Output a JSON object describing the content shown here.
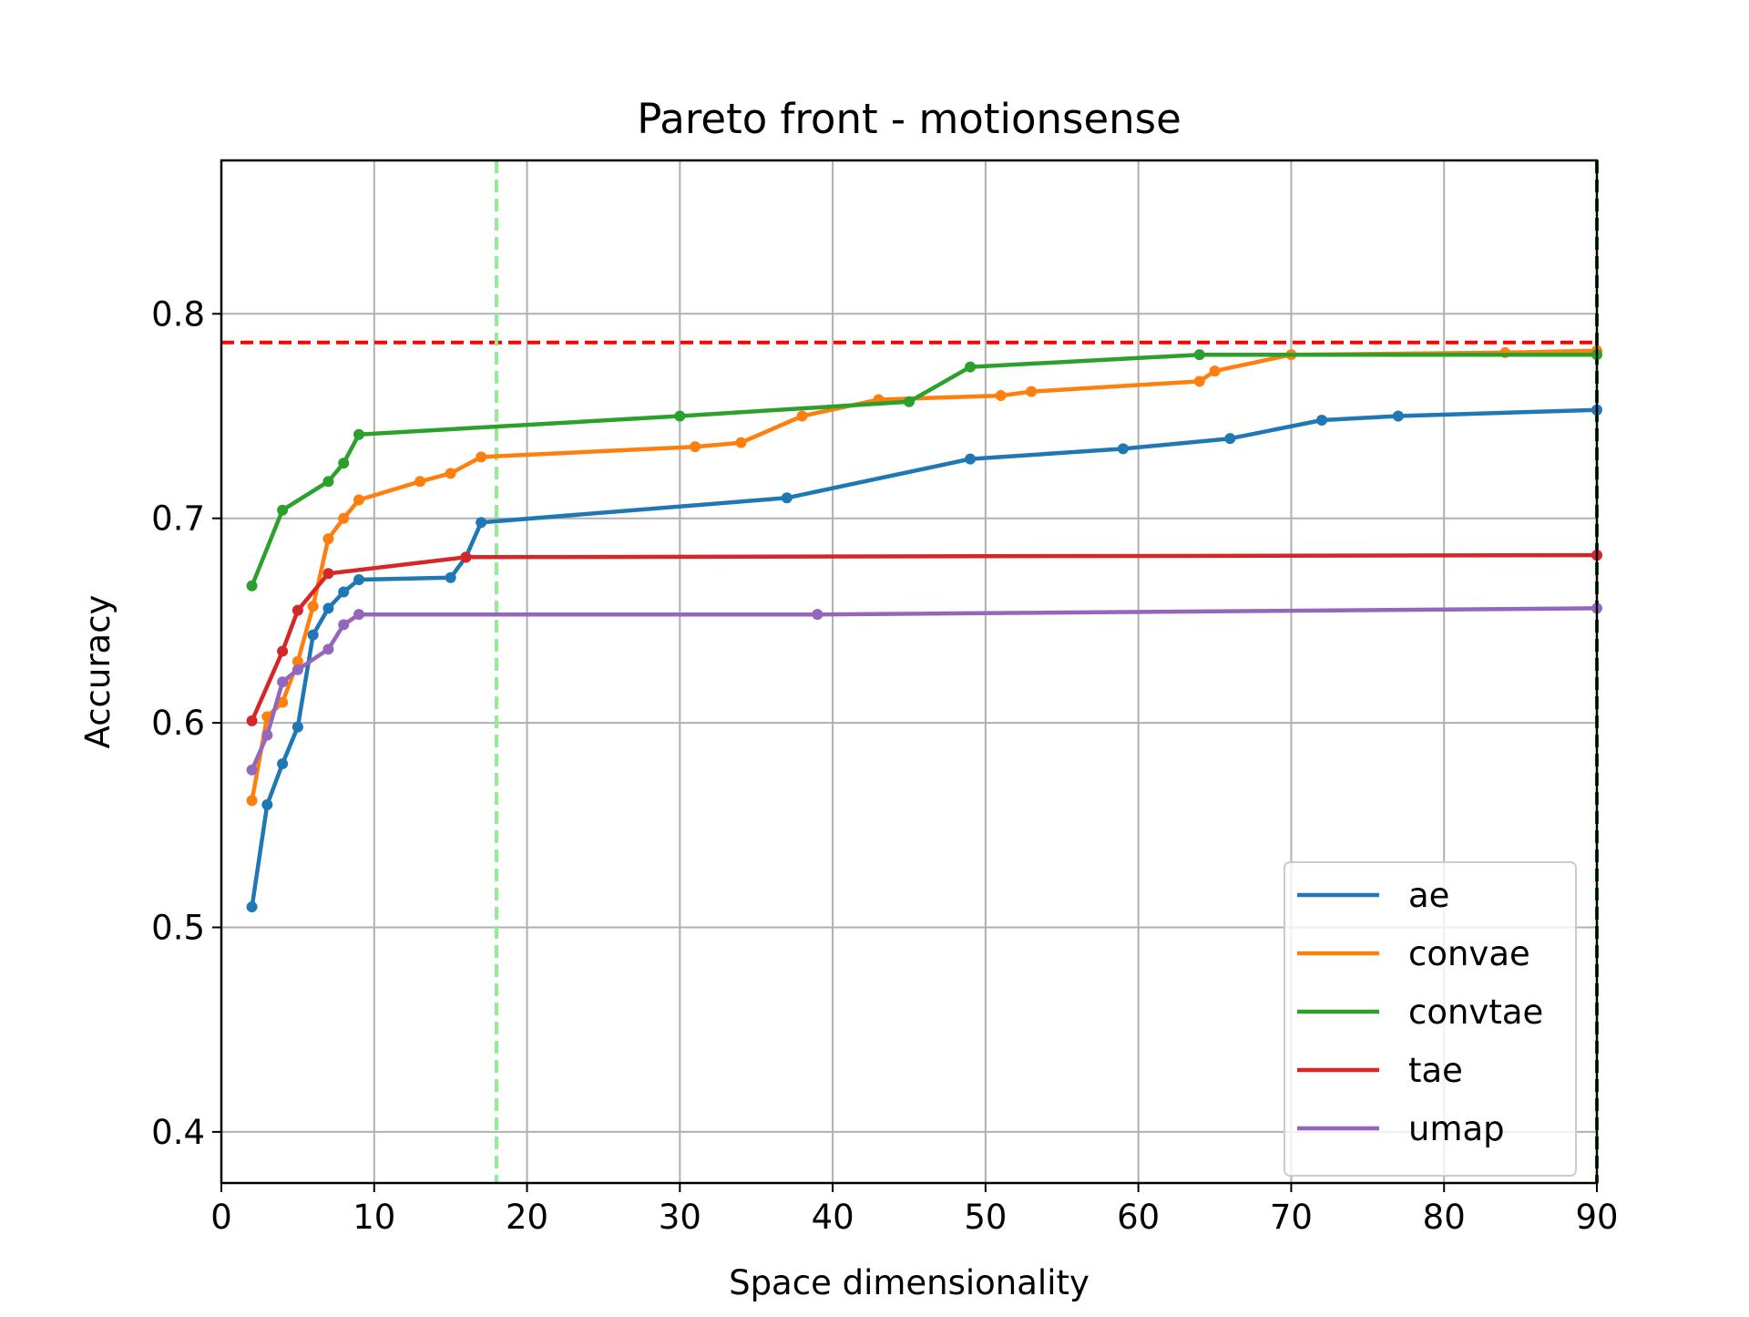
{
  "chart_data": {
    "type": "line",
    "title": "Pareto front - motionsense",
    "xlabel": "Space dimensionality",
    "ylabel": "Accuracy",
    "xlim": [
      0,
      90
    ],
    "ylim": [
      0.375,
      0.875
    ],
    "xticks": [
      0,
      10,
      20,
      30,
      40,
      50,
      60,
      70,
      80,
      90
    ],
    "yticks": [
      0.4,
      0.5,
      0.6,
      0.7,
      0.8
    ],
    "ytick_labels": [
      "0.4",
      "0.5",
      "0.6",
      "0.7",
      "0.8"
    ],
    "grid": true,
    "legend_position": "lower right",
    "reference_lines": [
      {
        "orientation": "horizontal",
        "value": 0.786,
        "color": "#ff0000",
        "style": "dashed"
      },
      {
        "orientation": "vertical",
        "value": 18,
        "color": "#90ee90",
        "style": "dashed"
      },
      {
        "orientation": "vertical",
        "value": 90,
        "color": "#006400",
        "style": "dashed"
      }
    ],
    "series": [
      {
        "name": "ae",
        "color": "#1f77b4",
        "x": [
          2,
          3,
          4,
          5,
          6,
          7,
          8,
          9,
          15,
          16,
          17,
          37,
          49,
          59,
          66,
          72,
          77,
          90
        ],
        "y": [
          0.51,
          0.56,
          0.58,
          0.598,
          0.643,
          0.656,
          0.664,
          0.67,
          0.671,
          0.681,
          0.698,
          0.71,
          0.729,
          0.734,
          0.739,
          0.748,
          0.75,
          0.753
        ]
      },
      {
        "name": "convae",
        "color": "#ff7f0e",
        "x": [
          2,
          3,
          4,
          5,
          6,
          7,
          8,
          9,
          13,
          15,
          17,
          31,
          34,
          38,
          43,
          51,
          53,
          64,
          65,
          70,
          84,
          90
        ],
        "y": [
          0.562,
          0.603,
          0.61,
          0.63,
          0.657,
          0.69,
          0.7,
          0.709,
          0.718,
          0.722,
          0.73,
          0.735,
          0.737,
          0.75,
          0.758,
          0.76,
          0.762,
          0.767,
          0.772,
          0.78,
          0.781,
          0.782
        ]
      },
      {
        "name": "convtae",
        "color": "#2ca02c",
        "x": [
          2,
          4,
          7,
          8,
          9,
          30,
          45,
          49,
          64,
          90
        ],
        "y": [
          0.667,
          0.704,
          0.718,
          0.727,
          0.741,
          0.75,
          0.757,
          0.774,
          0.78,
          0.78
        ]
      },
      {
        "name": "tae",
        "color": "#d62728",
        "x": [
          2,
          4,
          5,
          7,
          16,
          90
        ],
        "y": [
          0.601,
          0.635,
          0.655,
          0.673,
          0.681,
          0.682
        ]
      },
      {
        "name": "umap",
        "color": "#9467bd",
        "x": [
          2,
          3,
          4,
          5,
          7,
          8,
          9,
          39,
          90
        ],
        "y": [
          0.577,
          0.594,
          0.62,
          0.626,
          0.636,
          0.648,
          0.653,
          0.653,
          0.656
        ]
      }
    ]
  }
}
